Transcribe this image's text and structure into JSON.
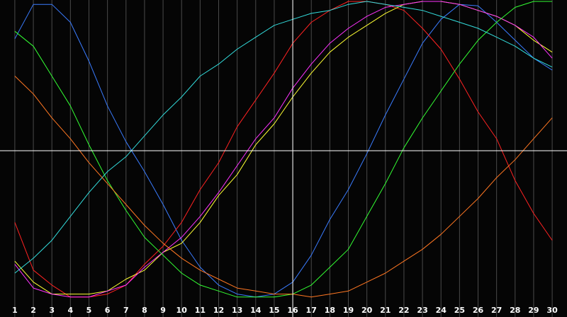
{
  "chart_data": {
    "type": "line",
    "x": [
      1,
      2,
      3,
      4,
      5,
      6,
      7,
      8,
      9,
      10,
      11,
      12,
      13,
      14,
      15,
      16,
      17,
      18,
      19,
      20,
      21,
      22,
      23,
      24,
      25,
      26,
      27,
      28,
      29,
      30
    ],
    "xlim": [
      0.2,
      30.8
    ],
    "ylim": [
      0,
      1
    ],
    "grid": true,
    "crosshair": {
      "x": 16,
      "y": 0.5
    },
    "colors": {
      "background": "#050505",
      "grid": "#4a4a4a",
      "crosshair": "#ffffff",
      "tick_label": "#ffffff"
    },
    "series": [
      {
        "color": "#3a7cff",
        "values": [
          0.875,
          0.99,
          0.99,
          0.93,
          0.8,
          0.65,
          0.53,
          0.43,
          0.32,
          0.2,
          0.11,
          0.05,
          0.02,
          0.01,
          0.02,
          0.06,
          0.15,
          0.27,
          0.37,
          0.49,
          0.62,
          0.74,
          0.86,
          0.94,
          0.99,
          0.985,
          0.93,
          0.87,
          0.81,
          0.77
        ]
      },
      {
        "color": "#ff2222",
        "values": [
          0.26,
          0.1,
          0.05,
          0.01,
          0.01,
          0.02,
          0.05,
          0.12,
          0.18,
          0.26,
          0.37,
          0.46,
          0.58,
          0.67,
          0.76,
          0.86,
          0.93,
          0.97,
          1.0,
          1.0,
          0.99,
          0.97,
          0.91,
          0.84,
          0.74,
          0.63,
          0.54,
          0.4,
          0.29,
          0.2
        ]
      },
      {
        "color": "#ffff33",
        "values": [
          0.13,
          0.06,
          0.02,
          0.02,
          0.02,
          0.03,
          0.07,
          0.1,
          0.16,
          0.19,
          0.26,
          0.35,
          0.42,
          0.52,
          0.59,
          0.68,
          0.76,
          0.83,
          0.88,
          0.92,
          0.96,
          0.99,
          1.0,
          1.0,
          0.99,
          0.97,
          0.95,
          0.92,
          0.87,
          0.83
        ]
      },
      {
        "color": "#ff33ff",
        "values": [
          0.12,
          0.04,
          0.02,
          0.01,
          0.01,
          0.03,
          0.05,
          0.11,
          0.16,
          0.21,
          0.28,
          0.36,
          0.45,
          0.54,
          0.61,
          0.71,
          0.79,
          0.86,
          0.91,
          0.95,
          0.98,
          0.99,
          1.0,
          1.0,
          0.99,
          0.97,
          0.95,
          0.92,
          0.88,
          0.81
        ]
      },
      {
        "color": "#33ff33",
        "values": [
          0.9,
          0.85,
          0.75,
          0.65,
          0.52,
          0.4,
          0.3,
          0.21,
          0.15,
          0.09,
          0.05,
          0.03,
          0.01,
          0.01,
          0.01,
          0.02,
          0.05,
          0.11,
          0.17,
          0.28,
          0.39,
          0.51,
          0.61,
          0.7,
          0.79,
          0.87,
          0.93,
          0.98,
          1.0,
          1.0
        ]
      },
      {
        "color": "#33dddd",
        "values": [
          0.09,
          0.14,
          0.2,
          0.28,
          0.36,
          0.43,
          0.48,
          0.55,
          0.62,
          0.68,
          0.75,
          0.79,
          0.84,
          0.88,
          0.92,
          0.94,
          0.96,
          0.97,
          0.99,
          1.0,
          0.99,
          0.98,
          0.97,
          0.95,
          0.93,
          0.91,
          0.88,
          0.85,
          0.81,
          0.78
        ]
      },
      {
        "color": "#ff7722",
        "values": [
          0.75,
          0.69,
          0.61,
          0.54,
          0.46,
          0.39,
          0.32,
          0.25,
          0.19,
          0.14,
          0.1,
          0.07,
          0.04,
          0.03,
          0.02,
          0.02,
          0.01,
          0.02,
          0.03,
          0.06,
          0.09,
          0.13,
          0.17,
          0.22,
          0.28,
          0.34,
          0.41,
          0.47,
          0.54,
          0.61
        ]
      }
    ]
  }
}
